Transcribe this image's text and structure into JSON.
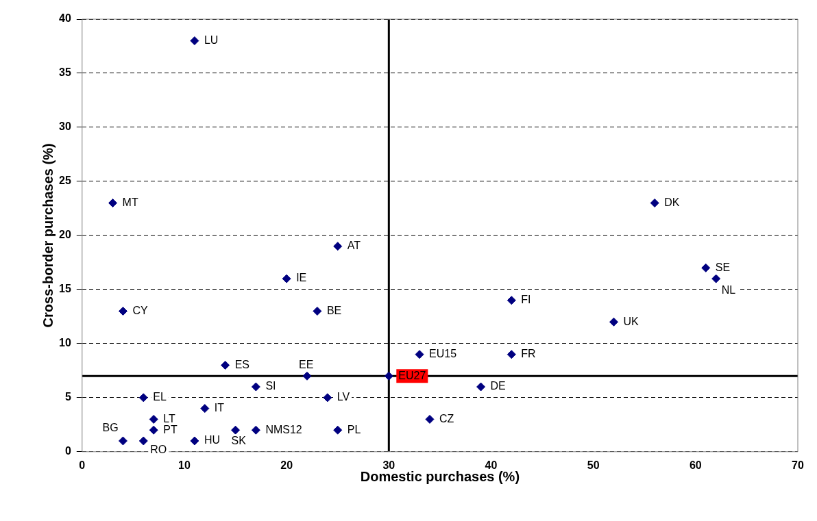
{
  "chart_data": {
    "type": "scatter",
    "xlabel": "Domestic purchases (%)",
    "ylabel": "Cross-border purchases (%)",
    "xlim": [
      0,
      70
    ],
    "xticks": [
      0,
      10,
      20,
      30,
      40,
      50,
      60,
      70
    ],
    "ylim": [
      0,
      40
    ],
    "yticks": [
      0,
      5,
      10,
      15,
      20,
      25,
      30,
      35,
      40
    ],
    "grid": "y",
    "marker": "diamond",
    "legend": false,
    "series": [
      {
        "color": "#000080",
        "x": [
          11,
          3,
          4,
          56,
          61,
          62,
          52,
          42,
          42,
          33,
          25,
          20,
          23,
          14,
          22,
          30,
          17,
          39,
          6,
          24,
          12,
          7,
          34,
          7,
          17,
          15,
          25,
          4,
          6,
          11
        ],
        "values": [
          38,
          23,
          13,
          23,
          17,
          16,
          12,
          14,
          9,
          9,
          19,
          16,
          13,
          8,
          7,
          7,
          6,
          6,
          5,
          5,
          4,
          3,
          3,
          2,
          2,
          2,
          2,
          1,
          1,
          1
        ]
      }
    ],
    "annotations": [
      {
        "text": "LU",
        "x": 11,
        "y": 38
      },
      {
        "text": "MT",
        "x": 3,
        "y": 23
      },
      {
        "text": "CY",
        "x": 4,
        "y": 13
      },
      {
        "text": "DK",
        "x": 56,
        "y": 23
      },
      {
        "text": "SE",
        "x": 61,
        "y": 17
      },
      {
        "text": "NL",
        "x": 62,
        "y": 16
      },
      {
        "text": "UK",
        "x": 52,
        "y": 12
      },
      {
        "text": "FI",
        "x": 42,
        "y": 14
      },
      {
        "text": "FR",
        "x": 42,
        "y": 9
      },
      {
        "text": "EU15",
        "x": 33,
        "y": 9
      },
      {
        "text": "AT",
        "x": 25,
        "y": 19
      },
      {
        "text": "IE",
        "x": 20,
        "y": 16
      },
      {
        "text": "BE",
        "x": 23,
        "y": 13
      },
      {
        "text": "ES",
        "x": 14,
        "y": 8
      },
      {
        "text": "EE",
        "x": 22,
        "y": 7
      },
      {
        "text": "EU27",
        "x": 30,
        "y": 7
      },
      {
        "text": "SI",
        "x": 17,
        "y": 6
      },
      {
        "text": "DE",
        "x": 39,
        "y": 6
      },
      {
        "text": "EL",
        "x": 6,
        "y": 5
      },
      {
        "text": "LV",
        "x": 24,
        "y": 5
      },
      {
        "text": "IT",
        "x": 12,
        "y": 4
      },
      {
        "text": "LT",
        "x": 7,
        "y": 3
      },
      {
        "text": "CZ",
        "x": 34,
        "y": 3
      },
      {
        "text": "PT",
        "x": 7,
        "y": 2
      },
      {
        "text": "NMS12",
        "x": 17,
        "y": 2
      },
      {
        "text": "SK",
        "x": 15,
        "y": 2
      },
      {
        "text": "PL",
        "x": 25,
        "y": 2
      },
      {
        "text": "BG",
        "x": 4,
        "y": 1
      },
      {
        "text": "RO",
        "x": 6,
        "y": 1
      },
      {
        "text": "HU",
        "x": 11,
        "y": 1
      }
    ],
    "ref_lines": [
      {
        "axis": "x",
        "value": 30
      },
      {
        "axis": "y",
        "value": 7
      }
    ]
  }
}
